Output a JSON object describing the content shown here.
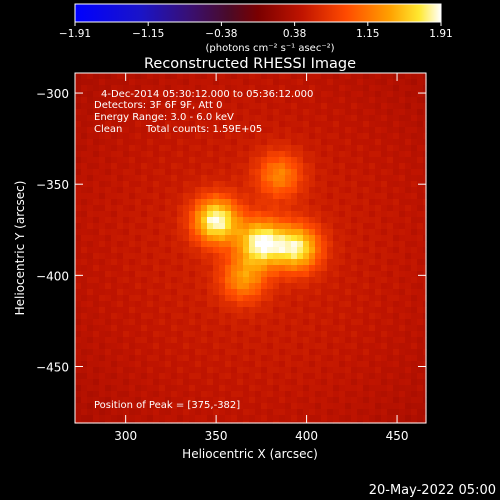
{
  "chart_data": {
    "type": "heatmap",
    "title": "Reconstructed RHESSI Image",
    "xlabel": "Heliocentric X (arcsec)",
    "ylabel": "Heliocentric Y (arcsec)",
    "xlim": [
      272,
      466
    ],
    "ylim": [
      -481,
      -289
    ],
    "x_ticks": [
      300,
      350,
      400,
      450
    ],
    "y_ticks": [
      -300,
      -350,
      -400,
      -450
    ],
    "colorbar": {
      "min": -1.91,
      "max": 1.91,
      "ticks": [
        "-1.91",
        "-1.15",
        "-0.38",
        "0.38",
        "1.15",
        "1.91"
      ],
      "units": "(photons cm⁻² s⁻¹ asec⁻²)",
      "colormap": "blue-purple-red-yellow-white"
    },
    "annotations": {
      "time_range": "4-Dec-2014 05:30:12.000 to 05:36:12.000",
      "detectors": "Detectors: 3F 6F 9F, Att 0",
      "energy_range": "Energy Range: 3.0 - 6.0 keV",
      "clean_label": "Clean",
      "total_counts": "Total counts: 1.59E+05",
      "peak_position": "Position of Peak = [375,-382]"
    },
    "sources": [
      {
        "x": 350,
        "y": -370,
        "value": 1.91
      },
      {
        "x": 375,
        "y": -382,
        "value": 1.85
      },
      {
        "x": 395,
        "y": -385,
        "value": 1.75
      },
      {
        "x": 385,
        "y": -345,
        "value": 1.25
      },
      {
        "x": 365,
        "y": -402,
        "value": 1.3
      }
    ],
    "background_level": 0.55,
    "grid": false
  },
  "footer": {
    "timestamp": "20-May-2022 05:00"
  }
}
